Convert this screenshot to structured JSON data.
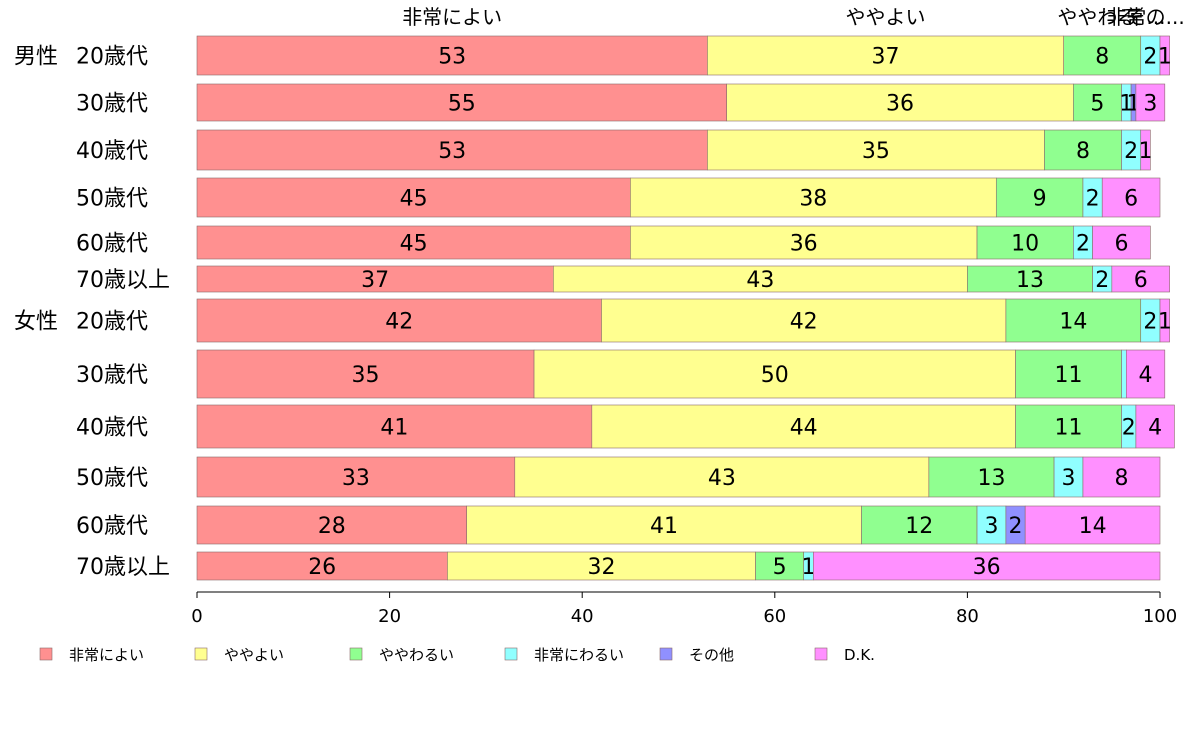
{
  "chart_data": {
    "type": "bar",
    "orientation": "horizontal",
    "stacked": true,
    "title": "",
    "xlabel": "",
    "ylabel": "",
    "xlim": [
      0,
      100
    ],
    "xticks": [
      0,
      20,
      40,
      60,
      80,
      100
    ],
    "grid": false,
    "legend_position": "bottom",
    "top_labels": [
      {
        "text": "非常によい",
        "at": 26.5
      },
      {
        "text": "ややよい",
        "at": 71.5
      },
      {
        "text": "ややわる",
        "at": 93.5
      },
      {
        "text": "非常...",
        "at": 97.5
      },
      {
        "text": "その...",
        "at": 99.5
      }
    ],
    "categories": [
      {
        "group": "男性",
        "label": "20歳代"
      },
      {
        "group": "",
        "label": "30歳代"
      },
      {
        "group": "",
        "label": "40歳代"
      },
      {
        "group": "",
        "label": "50歳代"
      },
      {
        "group": "",
        "label": "60歳代"
      },
      {
        "group": "",
        "label": "70歳以上"
      },
      {
        "group": "女性",
        "label": "20歳代"
      },
      {
        "group": "",
        "label": "30歳代"
      },
      {
        "group": "",
        "label": "40歳代"
      },
      {
        "group": "",
        "label": "50歳代"
      },
      {
        "group": "",
        "label": "60歳代"
      },
      {
        "group": "",
        "label": "70歳以上"
      }
    ],
    "series": [
      {
        "name": "非常によい",
        "color": "#ff9090",
        "values": [
          53,
          55,
          53,
          45,
          45,
          37,
          42,
          35,
          41,
          33,
          28,
          26
        ]
      },
      {
        "name": "ややよい",
        "color": "#ffff90",
        "values": [
          37,
          36,
          35,
          38,
          36,
          43,
          42,
          50,
          44,
          43,
          41,
          32
        ]
      },
      {
        "name": "ややわるい",
        "color": "#90ff90",
        "values": [
          8,
          5,
          8,
          9,
          10,
          13,
          14,
          11,
          11,
          13,
          12,
          5
        ]
      },
      {
        "name": "非常にわるい",
        "color": "#90ffff",
        "values": [
          2,
          1,
          2,
          2,
          2,
          2,
          2,
          0.5,
          1.5,
          3,
          3,
          1
        ]
      },
      {
        "name": "その他",
        "color": "#9090ff",
        "values": [
          0,
          0.5,
          0,
          0,
          0,
          0,
          0,
          0,
          0,
          0,
          2,
          0
        ]
      },
      {
        "name": "D.K.",
        "color": "#ff90ff",
        "values": [
          1,
          3,
          1,
          6,
          6,
          6,
          1,
          4,
          4,
          8,
          14,
          36
        ]
      }
    ],
    "data_labels": [
      [
        "53",
        "37",
        "8",
        "2",
        "",
        "1"
      ],
      [
        "55",
        "36",
        "5",
        "1",
        "1",
        "3"
      ],
      [
        "53",
        "35",
        "8",
        "2",
        "",
        "1"
      ],
      [
        "45",
        "38",
        "9",
        "2",
        "",
        "6"
      ],
      [
        "45",
        "36",
        "10",
        "2",
        "",
        "6"
      ],
      [
        "37",
        "43",
        "13",
        "2",
        "",
        "6"
      ],
      [
        "42",
        "42",
        "14",
        "2",
        "",
        "1"
      ],
      [
        "35",
        "50",
        "11",
        "",
        "",
        "4"
      ],
      [
        "41",
        "44",
        "11",
        "2",
        "",
        "4"
      ],
      [
        "33",
        "43",
        "13",
        "3",
        "",
        "8"
      ],
      [
        "28",
        "41",
        "12",
        "3",
        "2",
        "14"
      ],
      [
        "26",
        "32",
        "5",
        "1",
        "",
        "36"
      ]
    ]
  }
}
